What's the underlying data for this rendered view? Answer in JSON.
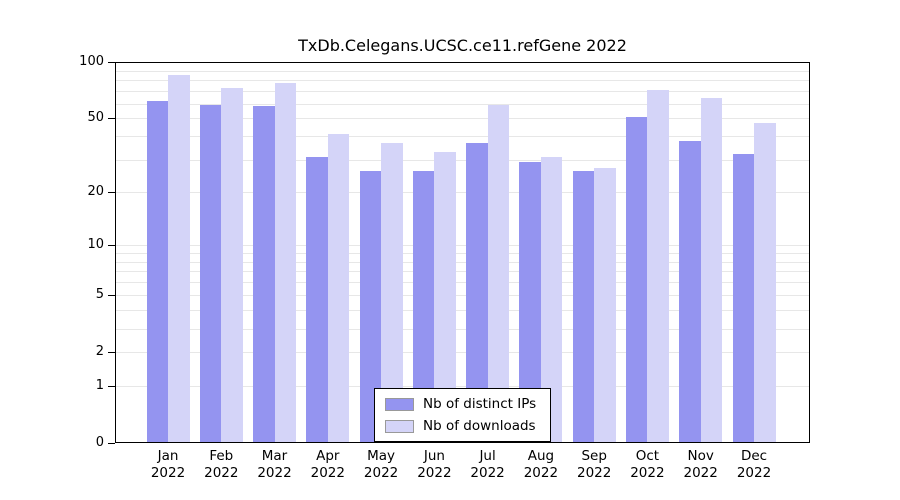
{
  "chart_data": {
    "type": "bar",
    "title": "TxDb.Celegans.UCSC.ce11.refGene 2022",
    "scale": "log1p",
    "categories": [
      "Jan",
      "Feb",
      "Mar",
      "Apr",
      "May",
      "Jun",
      "Jul",
      "Aug",
      "Sep",
      "Oct",
      "Nov",
      "Dec"
    ],
    "year_label": "2022",
    "series": [
      {
        "name": "Nb of distinct IPs",
        "color": "#9494f0",
        "values": [
          62,
          59,
          58,
          31,
          26,
          26,
          37,
          29,
          26,
          51,
          38,
          32
        ]
      },
      {
        "name": "Nb of downloads",
        "color": "#d4d4f8",
        "values": [
          85,
          73,
          77,
          41,
          37,
          33,
          59,
          31,
          27,
          71,
          64,
          47
        ]
      }
    ],
    "yticks": [
      0,
      1,
      2,
      5,
      10,
      20,
      50,
      100
    ],
    "gridlines": [
      1,
      2,
      3,
      4,
      5,
      6,
      7,
      8,
      9,
      10,
      20,
      30,
      40,
      50,
      60,
      70,
      80,
      90,
      100
    ],
    "ylim": [
      0,
      100
    ],
    "grid": true,
    "legend_position": "bottom-center"
  }
}
